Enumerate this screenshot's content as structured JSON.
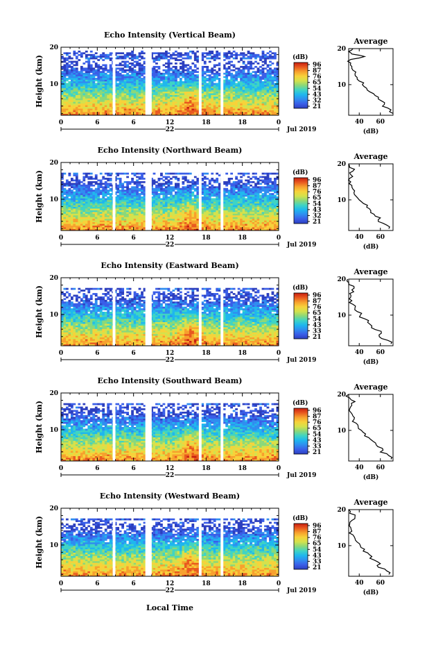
{
  "page": {
    "x_axis_title": "Local Time",
    "day_label": "22",
    "month_label": "Jul 2019"
  },
  "colors": {
    "colormap": [
      "#2c3fbf",
      "#3a5ee8",
      "#2f8df0",
      "#1fb7ee",
      "#3fd4c4",
      "#8ad87a",
      "#d4e24c",
      "#f7d23a",
      "#f7a02d",
      "#e8591f",
      "#c81e10"
    ]
  },
  "chart_data": [
    {
      "type": "heatmap",
      "title": "Echo Intensity (Vertical Beam)",
      "ylabel": "Height (km)",
      "xlim": [
        0,
        24
      ],
      "ylim": [
        1.5,
        20
      ],
      "x_ticks": [
        "0",
        "6",
        "6",
        "12",
        "18",
        "18",
        "0"
      ],
      "y_ticks": [
        "20",
        "10"
      ],
      "colorbar": {
        "label": "(dB)",
        "ticks": [
          "96",
          "87",
          "76",
          "65",
          "54",
          "43",
          "32",
          "21"
        ]
      },
      "data_gaps_hours": [
        [
          5.7,
          6.0
        ],
        [
          9.3,
          10.0
        ],
        [
          15.2,
          15.5
        ],
        [
          17.6,
          17.9
        ]
      ],
      "profile": {
        "title": "Average",
        "xlabel": "(dB)",
        "x_ticks": [
          "40",
          "60"
        ],
        "y_ticks": [
          "20",
          "10"
        ],
        "height_km": [
          2.0,
          3.0,
          4.0,
          5.0,
          6.0,
          7.0,
          8.0,
          9.0,
          10.0,
          11.0,
          12.0,
          13.0,
          14.0,
          15.0,
          16.0,
          17.0,
          17.8,
          18.5,
          19.2,
          20.0
        ],
        "avg_db": [
          72,
          70,
          62,
          64,
          58,
          55,
          50,
          47,
          43,
          40,
          38,
          36,
          34,
          33,
          32,
          32,
          45,
          33,
          30,
          34
        ]
      }
    },
    {
      "type": "heatmap",
      "title": "Echo Intensity (Northward Beam)",
      "ylabel": "Height (km)",
      "xlim": [
        0,
        24
      ],
      "ylim": [
        1.5,
        20
      ],
      "x_ticks": [
        "0",
        "6",
        "6",
        "12",
        "18",
        "18",
        "0"
      ],
      "y_ticks": [
        "20",
        "10"
      ],
      "colorbar": {
        "label": "(dB)",
        "ticks": [
          "96",
          "87",
          "76",
          "65",
          "54",
          "43",
          "32",
          "21"
        ]
      },
      "data_gaps_hours": [
        [
          5.7,
          6.0
        ],
        [
          9.3,
          10.0
        ],
        [
          15.2,
          15.5
        ],
        [
          17.6,
          17.9
        ]
      ],
      "profile": {
        "title": "Average",
        "xlabel": "(dB)",
        "x_ticks": [
          "40",
          "60"
        ],
        "y_ticks": [
          "20",
          "10"
        ],
        "height_km": [
          2.0,
          3.0,
          4.0,
          5.0,
          6.0,
          7.0,
          8.0,
          9.0,
          10.0,
          11.0,
          12.0,
          13.0,
          14.0,
          15.0,
          16.0,
          17.0,
          18.0,
          19.0,
          20.0
        ],
        "avg_db": [
          68,
          66,
          58,
          60,
          54,
          51,
          47,
          44,
          40,
          37,
          35,
          34,
          33,
          32,
          31,
          32,
          34,
          31,
          30
        ]
      }
    },
    {
      "type": "heatmap",
      "title": "Echo Intensity (Eastward Beam)",
      "ylabel": "Height (km)",
      "xlim": [
        0,
        24
      ],
      "ylim": [
        1.5,
        20
      ],
      "x_ticks": [
        "0",
        "6",
        "6",
        "12",
        "18",
        "18",
        "0"
      ],
      "y_ticks": [
        "20",
        "10"
      ],
      "colorbar": {
        "label": "(dB)",
        "ticks": [
          "96",
          "87",
          "76",
          "65",
          "54",
          "43",
          "33",
          "21"
        ]
      },
      "data_gaps_hours": [
        [
          5.7,
          6.0
        ],
        [
          9.3,
          10.0
        ],
        [
          15.2,
          15.5
        ],
        [
          17.6,
          17.9
        ]
      ],
      "profile": {
        "title": "Average",
        "xlabel": "(dB)",
        "x_ticks": [
          "40",
          "60"
        ],
        "y_ticks": [
          "20",
          "10"
        ],
        "height_km": [
          2.0,
          3.0,
          4.0,
          5.0,
          6.0,
          7.0,
          8.0,
          9.0,
          10.0,
          11.0,
          12.0,
          13.0,
          14.0,
          15.0,
          16.0,
          17.0,
          18.0,
          19.0,
          20.0
        ],
        "avg_db": [
          70,
          67,
          59,
          61,
          55,
          52,
          48,
          45,
          41,
          38,
          36,
          34,
          33,
          32,
          31,
          33,
          35,
          30,
          29
        ]
      }
    },
    {
      "type": "heatmap",
      "title": "Echo Intensity (Southward Beam)",
      "ylabel": "Height (km)",
      "xlim": [
        0,
        24
      ],
      "ylim": [
        1.5,
        20
      ],
      "x_ticks": [
        "0",
        "6",
        "6",
        "12",
        "18",
        "18",
        "0"
      ],
      "y_ticks": [
        "20",
        "10"
      ],
      "colorbar": {
        "label": "(dB)",
        "ticks": [
          "96",
          "87",
          "76",
          "65",
          "54",
          "43",
          "33",
          "21"
        ]
      },
      "data_gaps_hours": [
        [
          5.7,
          6.0
        ],
        [
          9.3,
          10.0
        ],
        [
          15.2,
          15.5
        ],
        [
          17.6,
          17.9
        ]
      ],
      "profile": {
        "title": "Average",
        "xlabel": "(dB)",
        "x_ticks": [
          "40",
          "60"
        ],
        "y_ticks": [
          "20",
          "10"
        ],
        "height_km": [
          2.0,
          3.0,
          4.0,
          5.0,
          6.0,
          7.0,
          8.0,
          9.0,
          10.0,
          11.0,
          12.0,
          13.0,
          14.0,
          15.0,
          16.0,
          17.0,
          18.0,
          19.0,
          20.0
        ],
        "avg_db": [
          70,
          68,
          60,
          62,
          56,
          53,
          49,
          46,
          42,
          39,
          37,
          35,
          34,
          32,
          31,
          33,
          36,
          31,
          30
        ]
      }
    },
    {
      "type": "heatmap",
      "title": "Echo Intensity (Westward Beam)",
      "ylabel": "Height (km)",
      "xlim": [
        0,
        24
      ],
      "ylim": [
        1.5,
        20
      ],
      "x_ticks": [
        "0",
        "6",
        "6",
        "12",
        "18",
        "18",
        "0"
      ],
      "y_ticks": [
        "20",
        "10"
      ],
      "colorbar": {
        "label": "(dB)",
        "ticks": [
          "96",
          "87",
          "76",
          "65",
          "54",
          "43",
          "33",
          "21"
        ]
      },
      "data_gaps_hours": [
        [
          5.7,
          6.0
        ],
        [
          9.3,
          10.0
        ],
        [
          15.2,
          15.5
        ],
        [
          17.6,
          17.9
        ]
      ],
      "profile": {
        "title": "Average",
        "xlabel": "(dB)",
        "x_ticks": [
          "40",
          "60"
        ],
        "y_ticks": [
          "20",
          "10"
        ],
        "height_km": [
          2.0,
          3.0,
          4.0,
          5.0,
          6.0,
          7.0,
          8.0,
          9.0,
          10.0,
          11.0,
          12.0,
          13.0,
          14.0,
          15.0,
          16.0,
          17.0,
          18.0,
          19.0,
          20.0
        ],
        "avg_db": [
          68,
          66,
          58,
          60,
          54,
          52,
          48,
          45,
          41,
          38,
          36,
          34,
          33,
          32,
          31,
          33,
          36,
          31,
          30
        ]
      }
    }
  ]
}
